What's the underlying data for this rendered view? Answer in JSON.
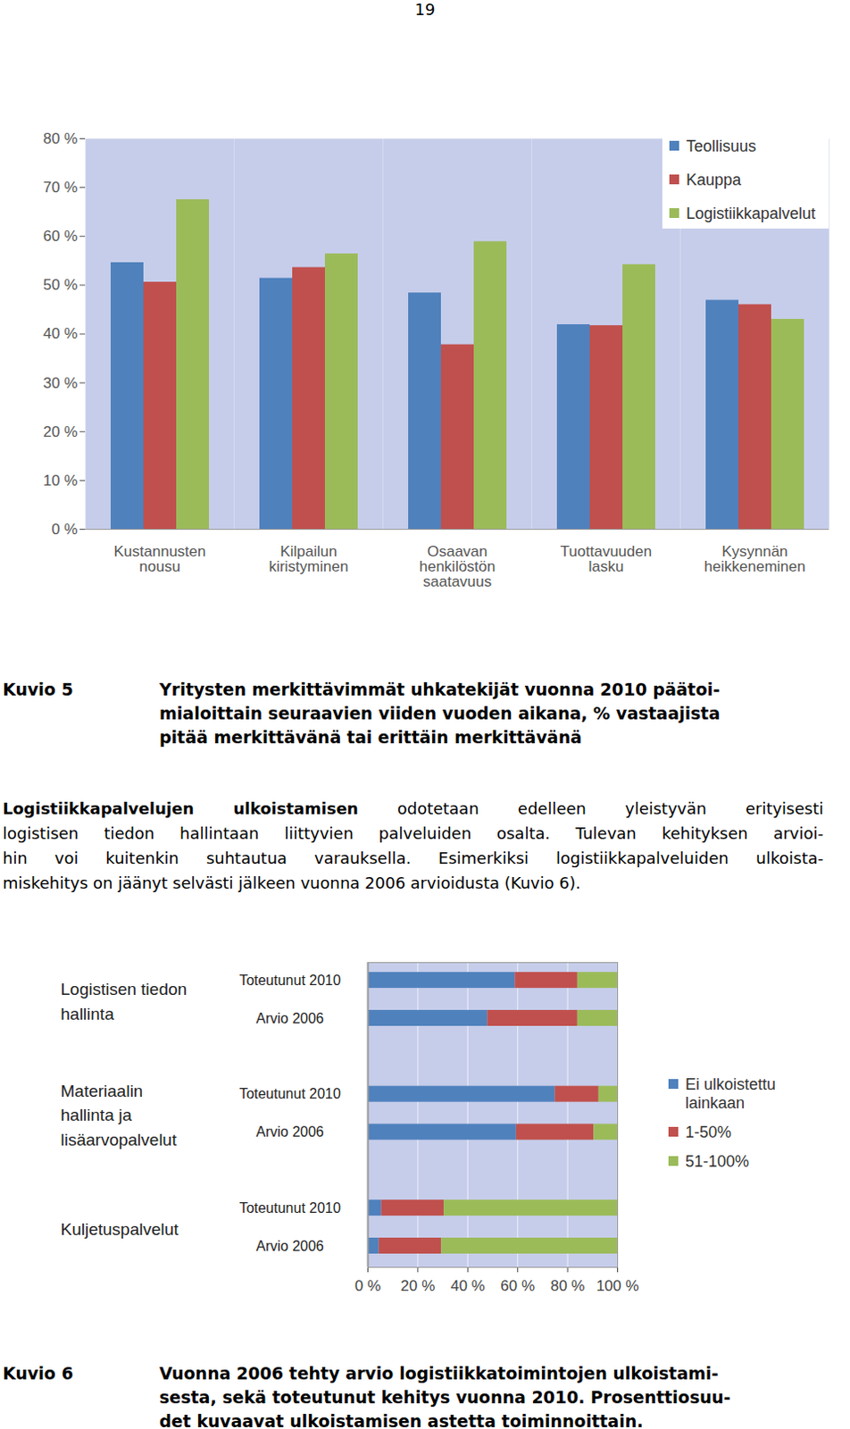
{
  "page_number": "19",
  "chart_data": [
    {
      "type": "bar",
      "categories": [
        "Kustannusten nousu",
        "Kilpailun kiristyminen",
        "Osaavan henkilöstön saatavuus",
        "Tuottavuuden lasku",
        "Kysynnän heikkeneminen"
      ],
      "series": [
        {
          "name": "Teollisuus",
          "color": "#4f81bd",
          "values": [
            54.6,
            51.4,
            48.4,
            41.9,
            46.9
          ]
        },
        {
          "name": "Kauppa",
          "color": "#c0504d",
          "values": [
            50.6,
            53.6,
            37.8,
            41.7,
            46.0
          ]
        },
        {
          "name": "Logistiikkapalvelut",
          "color": "#9bbb59",
          "values": [
            67.5,
            56.4,
            58.9,
            54.2,
            43.0
          ]
        }
      ],
      "ylim": [
        0,
        80
      ],
      "yticks": [
        {
          "value": 0,
          "label": "0 %"
        },
        {
          "value": 10,
          "label": "10 %"
        },
        {
          "value": 20,
          "label": "20 %"
        },
        {
          "value": 30,
          "label": "30 %"
        },
        {
          "value": 40,
          "label": "40 %"
        },
        {
          "value": 50,
          "label": "50 %"
        },
        {
          "value": 60,
          "label": "60 %"
        },
        {
          "value": 70,
          "label": "70 %"
        },
        {
          "value": 80,
          "label": "80 %"
        }
      ],
      "legend": "top-right",
      "grid": false
    },
    {
      "type": "bar",
      "orientation": "horizontal",
      "stacked": true,
      "groups": [
        {
          "label": [
            "Logistisen tiedon",
            "hallinta"
          ],
          "categories": [
            "Toteutunut 2010",
            "Arvio 2006"
          ]
        },
        {
          "label": [
            "Materiaalin",
            "hallinta ja",
            "lisäarvopalvelut"
          ],
          "categories": [
            "Toteutunut 2010",
            "Arvio 2006"
          ]
        },
        {
          "label": [
            "Kuljetuspalvelut"
          ],
          "categories": [
            "Toteutunut 2010",
            "Arvio 2006"
          ]
        }
      ],
      "series": [
        {
          "name": "Ei ulkoistettu lainkaan",
          "color": "#4f81bd",
          "values": [
            59,
            48,
            75,
            59.5,
            5.5,
            4.5
          ]
        },
        {
          "name": "1-50%",
          "color": "#c0504d",
          "values": [
            25,
            36,
            17.5,
            31,
            25,
            25
          ]
        },
        {
          "name": "51-100%",
          "color": "#9bbb59",
          "values": [
            16,
            16,
            7.5,
            9.5,
            69.5,
            70.5
          ]
        }
      ],
      "xlim": [
        0,
        100
      ],
      "xticks": [
        {
          "value": 0,
          "label": "0 %"
        },
        {
          "value": 20,
          "label": "20 %"
        },
        {
          "value": 40,
          "label": "40 %"
        },
        {
          "value": 60,
          "label": "60 %"
        },
        {
          "value": 80,
          "label": "80 %"
        },
        {
          "value": 100,
          "label": "100 %"
        }
      ],
      "legend": "right",
      "grid": true
    }
  ],
  "captions": [
    {
      "label": "Kuvio 5",
      "lines": [
        "Yritysten merkittävimmät uhkatekijät vuonna 2010 päätoi-",
        "mialoittain seuraavien viiden vuoden aikana, % vastaajista",
        "pitää merkittävänä tai erittäin merkittävänä"
      ]
    },
    {
      "label": "Kuvio 6",
      "lines": [
        "Vuonna 2006 tehty arvio logistiikkatoimintojen ulkoistami-",
        "sesta, sekä toteutunut kehitys vuonna 2010. Prosenttiosuu-",
        "det kuvaavat ulkoistamisen astetta toiminnoittain."
      ]
    }
  ],
  "paragraph": {
    "lead": "Logistiikkapalvelujen ulkoistamisen",
    "lines": [
      "odotetaan edelleen yleistyvän erityisesti",
      "logistisen tiedon hallintaan liittyvien palveluiden osalta. Tulevan kehityksen arvioi-",
      "hin voi kuitenkin suhtautua varauksella. Esimerkiksi logistiikkapalveluiden ulkoista-",
      "miskehitys on jäänyt selvästi jälkeen vuonna 2006 arvioidusta (Kuvio 6)."
    ]
  }
}
